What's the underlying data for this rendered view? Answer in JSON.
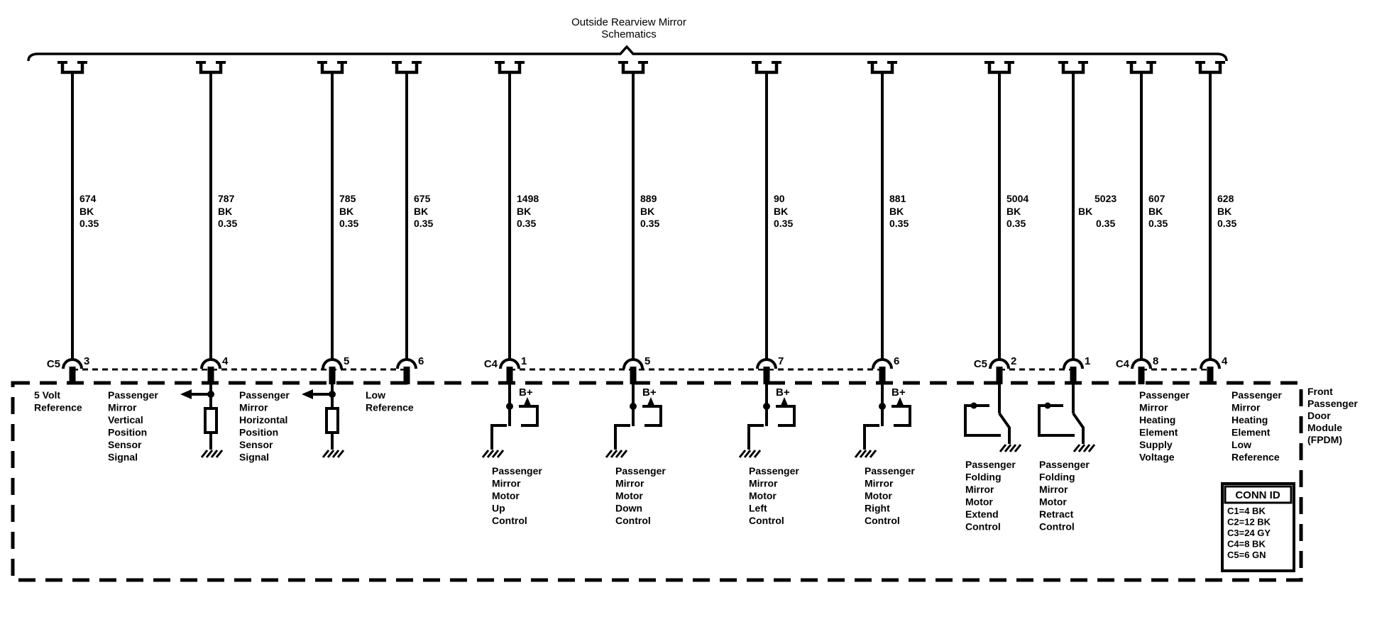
{
  "title": {
    "line1": "Outside Rearview Mirror",
    "line2": "Schematics"
  },
  "module_label": {
    "lines": [
      "Front",
      "Passenger",
      "Door",
      "Module",
      "(FPDM)"
    ]
  },
  "conn_id_table": {
    "header": "CONN ID",
    "rows": [
      "C1=4 BK",
      "C2=12 BK",
      "C3=24 GY",
      "C4=8 BK",
      "C5=6 GN"
    ]
  },
  "b_plus_label": "B+",
  "colors": {
    "ink": "#000000",
    "background": "#ffffff"
  },
  "columns": [
    {
      "conn": "C5",
      "pin": "3",
      "wire_label": [
        "674",
        "BK",
        "0.35"
      ],
      "component": {
        "type": "plain",
        "label": [
          "5 Volt",
          "Reference"
        ]
      }
    },
    {
      "pin": "4",
      "wire_label": [
        "787",
        "BK",
        "0.35"
      ],
      "component": {
        "type": "position-sensor",
        "label": [
          "Passenger",
          "Mirror",
          "Vertical",
          "Position",
          "Sensor",
          "Signal"
        ]
      }
    },
    {
      "pin": "5",
      "wire_label": [
        "785",
        "BK",
        "0.35"
      ],
      "component": {
        "type": "position-sensor",
        "label": [
          "Passenger",
          "Mirror",
          "Horizontal",
          "Position",
          "Sensor",
          "Signal"
        ]
      }
    },
    {
      "pin": "6",
      "wire_label": [
        "675",
        "BK",
        "0.35"
      ],
      "component": {
        "type": "plain",
        "label": [
          "Low",
          "Reference"
        ]
      }
    },
    {
      "conn": "C4",
      "pin": "1",
      "wire_label": [
        "1498",
        "BK",
        "0.35"
      ],
      "component": {
        "type": "motor-driver",
        "label": [
          "Passenger",
          "Mirror",
          "Motor",
          "Up",
          "Control"
        ]
      }
    },
    {
      "pin": "5",
      "wire_label": [
        "889",
        "BK",
        "0.35"
      ],
      "component": {
        "type": "motor-driver",
        "label": [
          "Passenger",
          "Mirror",
          "Motor",
          "Down",
          "Control"
        ]
      }
    },
    {
      "pin": "7",
      "wire_label": [
        "90",
        "BK",
        "0.35"
      ],
      "component": {
        "type": "motor-driver",
        "label": [
          "Passenger",
          "Mirror",
          "Motor",
          "Left",
          "Control"
        ]
      }
    },
    {
      "pin": "6",
      "wire_label": [
        "881",
        "BK",
        "0.35"
      ],
      "component": {
        "type": "motor-driver",
        "label": [
          "Passenger",
          "Mirror",
          "Motor",
          "Right",
          "Control"
        ]
      }
    },
    {
      "conn": "C5",
      "pin": "2",
      "wire_label": [
        "5004",
        "BK",
        "0.35"
      ],
      "component": {
        "type": "fold-driver",
        "label": [
          "Passenger",
          "Folding",
          "Mirror",
          "Motor",
          "Extend",
          "Control"
        ]
      }
    },
    {
      "pin": "1",
      "wire_label": [
        "5023",
        "BK",
        "0.35"
      ],
      "wire_label_offset": true,
      "component": {
        "type": "fold-driver",
        "label": [
          "Passenger",
          "Folding",
          "Mirror",
          "Motor",
          "Retract",
          "Control"
        ]
      }
    },
    {
      "conn": "C4",
      "pin": "8",
      "wire_label": [
        "607",
        "BK",
        "0.35"
      ],
      "component": {
        "type": "plain",
        "label": [
          "Passenger",
          "Mirror",
          "Heating",
          "Element",
          "Supply",
          "Voltage"
        ]
      }
    },
    {
      "pin": "4",
      "wire_label": [
        "628",
        "BK",
        "0.35"
      ],
      "component": {
        "type": "plain",
        "label": [
          "Passenger",
          "Mirror",
          "Heating",
          "Element",
          "Low",
          "Reference"
        ]
      }
    }
  ]
}
